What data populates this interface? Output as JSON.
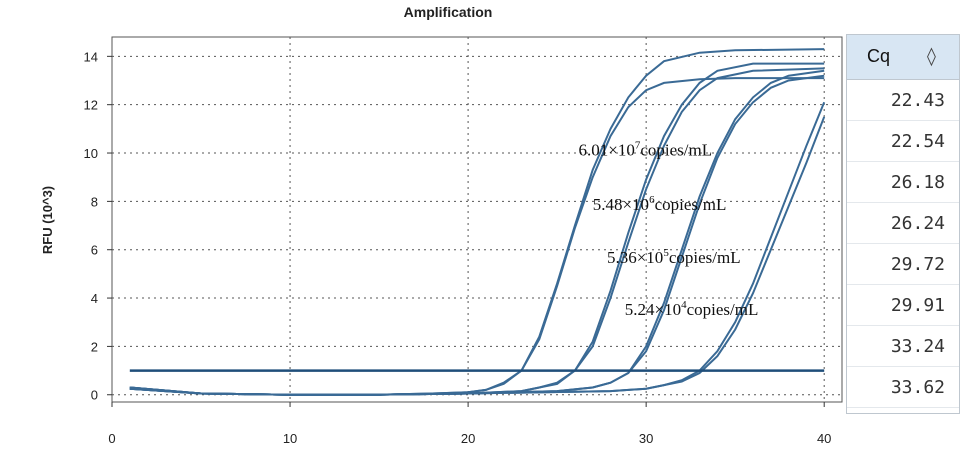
{
  "chart_data": {
    "type": "line",
    "title": "Amplification",
    "xlabel": "",
    "ylabel": "RFU (10^3)",
    "xlim": [
      0,
      41
    ],
    "ylim": [
      -0.3,
      14.8
    ],
    "x_ticks": [
      0,
      10,
      20,
      30,
      40
    ],
    "y_ticks": [
      0,
      2,
      4,
      6,
      8,
      10,
      12,
      14
    ],
    "grid": true,
    "threshold": 1.0,
    "series": [
      {
        "values": [
          [
            1,
            0.3
          ],
          [
            5,
            0.05
          ],
          [
            10,
            0.0
          ],
          [
            15,
            0.0
          ],
          [
            18,
            0.05
          ],
          [
            20,
            0.1
          ],
          [
            21,
            0.2
          ],
          [
            22,
            0.5
          ],
          [
            23,
            1.0
          ],
          [
            24,
            2.4
          ],
          [
            25,
            4.6
          ],
          [
            26,
            7.0
          ],
          [
            27,
            9.3
          ],
          [
            28,
            11.0
          ],
          [
            29,
            12.3
          ],
          [
            30,
            13.2
          ],
          [
            31,
            13.8
          ],
          [
            33,
            14.15
          ],
          [
            35,
            14.25
          ],
          [
            40,
            14.3
          ]
        ]
      },
      {
        "values": [
          [
            1,
            0.25
          ],
          [
            5,
            0.05
          ],
          [
            10,
            0.0
          ],
          [
            15,
            0.0
          ],
          [
            18,
            0.05
          ],
          [
            20,
            0.1
          ],
          [
            21,
            0.2
          ],
          [
            22,
            0.45
          ],
          [
            23,
            1.0
          ],
          [
            24,
            2.3
          ],
          [
            25,
            4.5
          ],
          [
            26,
            6.9
          ],
          [
            27,
            9.0
          ],
          [
            28,
            10.7
          ],
          [
            29,
            11.9
          ],
          [
            30,
            12.6
          ],
          [
            31,
            12.9
          ],
          [
            33,
            13.05
          ],
          [
            35,
            13.1
          ],
          [
            40,
            13.1
          ]
        ]
      },
      {
        "values": [
          [
            1,
            0.3
          ],
          [
            5,
            0.05
          ],
          [
            10,
            0.0
          ],
          [
            15,
            0.0
          ],
          [
            20,
            0.05
          ],
          [
            23,
            0.15
          ],
          [
            24,
            0.3
          ],
          [
            25,
            0.5
          ],
          [
            26,
            1.0
          ],
          [
            27,
            2.2
          ],
          [
            28,
            4.3
          ],
          [
            29,
            6.7
          ],
          [
            30,
            8.9
          ],
          [
            31,
            10.7
          ],
          [
            32,
            12.0
          ],
          [
            33,
            12.9
          ],
          [
            34,
            13.4
          ],
          [
            36,
            13.7
          ],
          [
            40,
            13.7
          ]
        ]
      },
      {
        "values": [
          [
            1,
            0.25
          ],
          [
            5,
            0.05
          ],
          [
            10,
            0.0
          ],
          [
            15,
            0.0
          ],
          [
            20,
            0.05
          ],
          [
            23,
            0.15
          ],
          [
            24,
            0.3
          ],
          [
            25,
            0.45
          ],
          [
            26,
            1.0
          ],
          [
            27,
            2.0
          ],
          [
            28,
            4.0
          ],
          [
            29,
            6.3
          ],
          [
            30,
            8.5
          ],
          [
            31,
            10.3
          ],
          [
            32,
            11.7
          ],
          [
            33,
            12.6
          ],
          [
            34,
            13.1
          ],
          [
            36,
            13.4
          ],
          [
            40,
            13.5
          ]
        ]
      },
      {
        "values": [
          [
            1,
            0.3
          ],
          [
            5,
            0.05
          ],
          [
            10,
            0.0
          ],
          [
            15,
            0.0
          ],
          [
            20,
            0.05
          ],
          [
            25,
            0.15
          ],
          [
            27,
            0.3
          ],
          [
            28,
            0.5
          ],
          [
            29,
            0.9
          ],
          [
            30,
            2.0
          ],
          [
            31,
            3.8
          ],
          [
            32,
            6.0
          ],
          [
            33,
            8.2
          ],
          [
            34,
            10.0
          ],
          [
            35,
            11.4
          ],
          [
            36,
            12.3
          ],
          [
            37,
            12.9
          ],
          [
            38,
            13.2
          ],
          [
            40,
            13.4
          ]
        ]
      },
      {
        "values": [
          [
            1,
            0.25
          ],
          [
            5,
            0.05
          ],
          [
            10,
            0.0
          ],
          [
            15,
            0.0
          ],
          [
            20,
            0.05
          ],
          [
            25,
            0.15
          ],
          [
            27,
            0.3
          ],
          [
            28,
            0.5
          ],
          [
            29,
            0.9
          ],
          [
            30,
            1.8
          ],
          [
            31,
            3.5
          ],
          [
            32,
            5.7
          ],
          [
            33,
            7.9
          ],
          [
            34,
            9.8
          ],
          [
            35,
            11.2
          ],
          [
            36,
            12.1
          ],
          [
            37,
            12.7
          ],
          [
            38,
            13.0
          ],
          [
            40,
            13.2
          ]
        ]
      },
      {
        "values": [
          [
            1,
            0.3
          ],
          [
            5,
            0.05
          ],
          [
            10,
            0.0
          ],
          [
            15,
            0.0
          ],
          [
            20,
            0.05
          ],
          [
            28,
            0.15
          ],
          [
            30,
            0.25
          ],
          [
            31,
            0.4
          ],
          [
            32,
            0.6
          ],
          [
            33,
            1.0
          ],
          [
            34,
            1.8
          ],
          [
            35,
            3.0
          ],
          [
            36,
            4.6
          ],
          [
            37,
            6.5
          ],
          [
            38,
            8.4
          ],
          [
            39,
            10.3
          ],
          [
            40,
            12.1
          ]
        ]
      },
      {
        "values": [
          [
            1,
            0.25
          ],
          [
            5,
            0.05
          ],
          [
            10,
            0.0
          ],
          [
            15,
            0.0
          ],
          [
            20,
            0.05
          ],
          [
            28,
            0.15
          ],
          [
            30,
            0.25
          ],
          [
            31,
            0.4
          ],
          [
            32,
            0.55
          ],
          [
            33,
            0.9
          ],
          [
            34,
            1.6
          ],
          [
            35,
            2.7
          ],
          [
            36,
            4.2
          ],
          [
            37,
            6.0
          ],
          [
            38,
            7.8
          ],
          [
            39,
            9.6
          ],
          [
            40,
            11.5
          ]
        ]
      }
    ],
    "annotations": [
      {
        "label": "6.01×10",
        "sup": "7",
        "unit": "copies/mL",
        "x": 26.2,
        "y": 9.9
      },
      {
        "label": "5.48×10",
        "sup": "6",
        "unit": "copies/mL",
        "x": 27.0,
        "y": 7.65
      },
      {
        "label": "5.36×10",
        "sup": "5",
        "unit": "copies/mL",
        "x": 27.8,
        "y": 5.45
      },
      {
        "label": "5.24×10",
        "sup": "4",
        "unit": "copies/mL",
        "x": 28.8,
        "y": 3.3
      }
    ],
    "colors": {
      "curve": "#3a6a95",
      "threshold": "#1f4e7a",
      "grid": "#555555"
    }
  },
  "cq_table": {
    "header": "Cq",
    "sort_icon": "sort-diamond-icon",
    "values": [
      "22.43",
      "22.54",
      "26.18",
      "26.24",
      "29.72",
      "29.91",
      "33.24",
      "33.62"
    ]
  }
}
